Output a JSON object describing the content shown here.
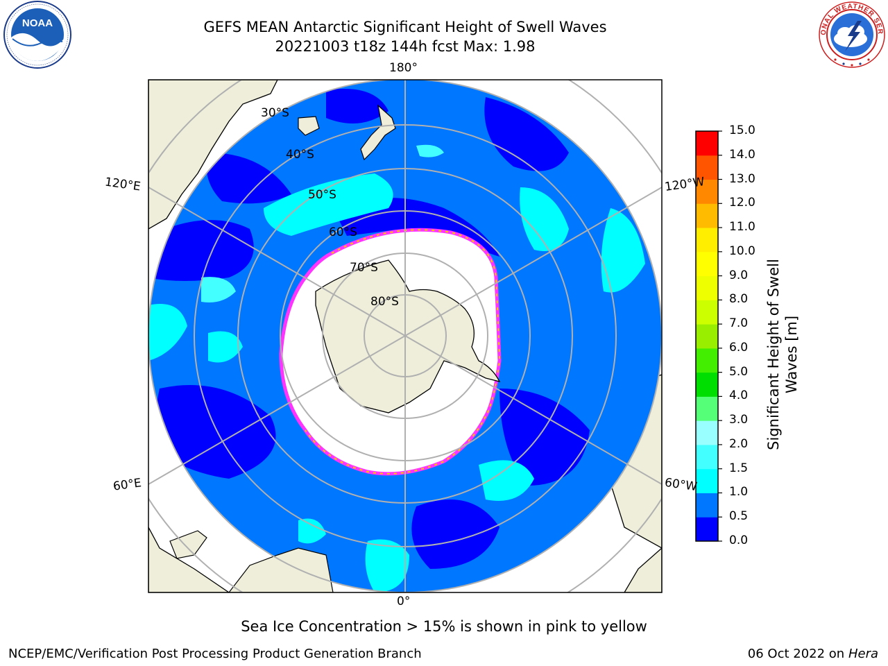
{
  "header": {
    "title_line1": "GEFS MEAN Antarctic Significant Height of Swell Waves",
    "title_line2": "20221003 t18z 144h fcst   Max: 1.98"
  },
  "logos": [
    {
      "name": "noaa-logo",
      "text": "NOAA",
      "ring_text": "NATIONAL OCEANIC AND ATMOSPHERIC ADMINISTRATION · U.S. DEPARTMENT OF COMMERCE"
    },
    {
      "name": "nws-logo",
      "ring_text": "NATIONAL WEATHER SERVICE"
    }
  ],
  "map": {
    "projection": "south polar stereographic",
    "longitude_labels": {
      "top": "180°",
      "bottom": "0°",
      "upper_left": "120°E",
      "upper_right": "120°W",
      "lower_left": "60°E",
      "lower_right": "60°W"
    },
    "latitude_labels": [
      "30°S",
      "40°S",
      "50°S",
      "60°S",
      "70°S",
      "80°S"
    ],
    "colors": {
      "land": "#eeeedb",
      "ocean_0_0_5": "#0000ff",
      "ocean_0_5_1": "#0077ff",
      "ocean_1_1_5": "#00ffff",
      "sea_ice": "#ffffff",
      "ice_edge": "#ff33ff",
      "ice_edge_secondary": "#ffcc00",
      "graticule": "#b0b0b0"
    }
  },
  "colorbar": {
    "label": "Significant Height of Swell Waves [m]",
    "ticks": [
      "0.0",
      "0.5",
      "1.0",
      "1.5",
      "2.0",
      "3.0",
      "4.0",
      "5.0",
      "6.0",
      "7.0",
      "8.0",
      "9.0",
      "10.0",
      "11.0",
      "12.0",
      "13.0",
      "14.0",
      "15.0"
    ],
    "colors": [
      "#0000ff",
      "#0077ff",
      "#00ffff",
      "#44ffff",
      "#99ffff",
      "#55ff77",
      "#00dd00",
      "#44ee00",
      "#99ee00",
      "#ccff00",
      "#eeff00",
      "#ffff00",
      "#ffee00",
      "#ffbb00",
      "#ff8800",
      "#ff5500",
      "#ff0000"
    ]
  },
  "caption": "Sea Ice Concentration > 15% is shown in pink to yellow",
  "footer": {
    "left": "NCEP/EMC/Verification Post Processing Product Generation Branch",
    "right_prefix": "06 Oct 2022 on ",
    "right_host": "Hera"
  }
}
